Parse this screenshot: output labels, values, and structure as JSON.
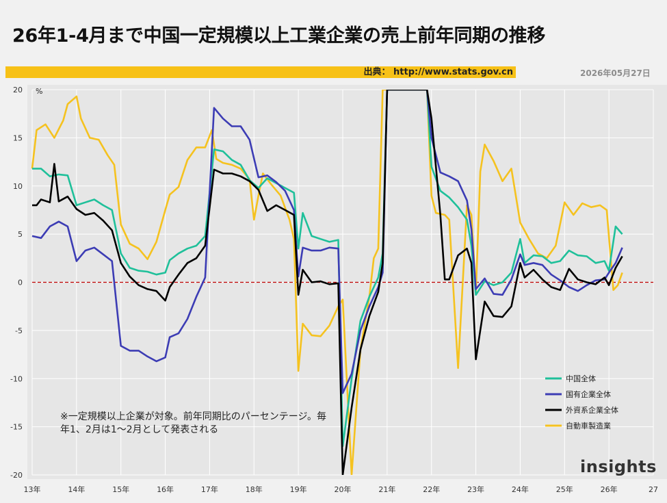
{
  "header": {
    "title": "26年1-4月まで中国一定規模以上工業企業の売上前年同期の推移",
    "source": "出典： http://www.stats.gov.cn",
    "date": "2026年05月27日"
  },
  "note": "※一定規模以上企業が対象。前年同期比のパーセンテージ。毎年1、2月は1～2月として発表される",
  "logo": "insights",
  "colors": {
    "china_total": "#1fc09a",
    "state_owned": "#3c3cb4",
    "foreign": "#000000",
    "auto": "#f5c21f",
    "zero_line": "#c00000",
    "grid": "#ffffff"
  },
  "chart_data": {
    "type": "line",
    "ylabel": "%",
    "ylim": [
      -20,
      20
    ],
    "xlim": [
      13,
      27
    ],
    "y_ticks": [
      20,
      15,
      10,
      5,
      0,
      -5,
      -10,
      -15,
      -20
    ],
    "x_ticks": [
      {
        "value": 13,
        "label": "13年"
      },
      {
        "value": 14,
        "label": "14年"
      },
      {
        "value": 15,
        "label": "15年"
      },
      {
        "value": 16,
        "label": "16年"
      },
      {
        "value": 17,
        "label": "17年"
      },
      {
        "value": 18,
        "label": "18年"
      },
      {
        "value": 19,
        "label": "19年"
      },
      {
        "value": 20,
        "label": "20年"
      },
      {
        "value": 21,
        "label": "21年"
      },
      {
        "value": 22,
        "label": "22年"
      },
      {
        "value": 23,
        "label": "23年"
      },
      {
        "value": 24,
        "label": "24年"
      },
      {
        "value": 25,
        "label": "25年"
      },
      {
        "value": 26,
        "label": "26年"
      },
      {
        "value": 27,
        "label": "27"
      }
    ],
    "legend_position": "bottom-right",
    "series": [
      {
        "key": "china_total",
        "name": "中国全体",
        "points": [
          [
            13.0,
            11.8
          ],
          [
            13.2,
            11.8
          ],
          [
            13.4,
            11.0
          ],
          [
            13.6,
            11.2
          ],
          [
            13.8,
            11.1
          ],
          [
            14.0,
            8.0
          ],
          [
            14.2,
            8.3
          ],
          [
            14.4,
            8.6
          ],
          [
            14.6,
            8.0
          ],
          [
            14.8,
            7.5
          ],
          [
            15.0,
            3.0
          ],
          [
            15.2,
            1.5
          ],
          [
            15.4,
            1.2
          ],
          [
            15.6,
            1.1
          ],
          [
            15.8,
            0.8
          ],
          [
            16.0,
            1.0
          ],
          [
            16.1,
            2.3
          ],
          [
            16.3,
            3.0
          ],
          [
            16.5,
            3.5
          ],
          [
            16.7,
            3.8
          ],
          [
            16.9,
            4.8
          ],
          [
            17.1,
            13.8
          ],
          [
            17.3,
            13.6
          ],
          [
            17.5,
            12.7
          ],
          [
            17.7,
            12.2
          ],
          [
            17.9,
            10.6
          ],
          [
            18.1,
            9.8
          ],
          [
            18.3,
            10.8
          ],
          [
            18.5,
            10.3
          ],
          [
            18.7,
            9.8
          ],
          [
            18.9,
            9.3
          ],
          [
            19.0,
            3.5
          ],
          [
            19.1,
            7.2
          ],
          [
            19.3,
            4.8
          ],
          [
            19.5,
            4.5
          ],
          [
            19.7,
            4.2
          ],
          [
            19.9,
            4.4
          ],
          [
            20.0,
            -17.0
          ],
          [
            20.2,
            -10.0
          ],
          [
            20.4,
            -4.0
          ],
          [
            20.6,
            -1.5
          ],
          [
            20.8,
            0.5
          ],
          [
            20.9,
            3.0
          ],
          [
            21.0,
            20.0
          ],
          [
            21.9,
            20.0
          ],
          [
            22.0,
            12.0
          ],
          [
            22.2,
            9.5
          ],
          [
            22.4,
            8.8
          ],
          [
            22.6,
            7.8
          ],
          [
            22.8,
            6.5
          ],
          [
            22.9,
            3.8
          ],
          [
            23.0,
            -1.3
          ],
          [
            23.2,
            0.1
          ],
          [
            23.4,
            -0.3
          ],
          [
            23.6,
            0.0
          ],
          [
            23.8,
            1.0
          ],
          [
            24.0,
            4.5
          ],
          [
            24.1,
            2.0
          ],
          [
            24.3,
            2.8
          ],
          [
            24.5,
            2.7
          ],
          [
            24.7,
            2.0
          ],
          [
            24.9,
            2.2
          ],
          [
            25.1,
            3.3
          ],
          [
            25.3,
            2.8
          ],
          [
            25.5,
            2.7
          ],
          [
            25.7,
            2.0
          ],
          [
            25.9,
            2.2
          ],
          [
            26.0,
            1.2
          ],
          [
            26.15,
            5.8
          ],
          [
            26.3,
            5.0
          ]
        ]
      },
      {
        "key": "state_owned",
        "name": "国有企業全体",
        "points": [
          [
            13.0,
            4.8
          ],
          [
            13.2,
            4.6
          ],
          [
            13.4,
            5.8
          ],
          [
            13.6,
            6.3
          ],
          [
            13.8,
            5.8
          ],
          [
            14.0,
            2.2
          ],
          [
            14.2,
            3.3
          ],
          [
            14.4,
            3.6
          ],
          [
            14.6,
            2.9
          ],
          [
            14.8,
            2.2
          ],
          [
            15.0,
            -6.6
          ],
          [
            15.2,
            -7.1
          ],
          [
            15.4,
            -7.1
          ],
          [
            15.6,
            -7.7
          ],
          [
            15.8,
            -8.2
          ],
          [
            16.0,
            -7.8
          ],
          [
            16.1,
            -5.7
          ],
          [
            16.3,
            -5.3
          ],
          [
            16.5,
            -3.8
          ],
          [
            16.7,
            -1.5
          ],
          [
            16.9,
            0.5
          ],
          [
            17.1,
            18.1
          ],
          [
            17.3,
            17.0
          ],
          [
            17.5,
            16.2
          ],
          [
            17.7,
            16.2
          ],
          [
            17.9,
            14.8
          ],
          [
            18.1,
            10.9
          ],
          [
            18.3,
            11.1
          ],
          [
            18.5,
            10.4
          ],
          [
            18.7,
            9.5
          ],
          [
            18.9,
            7.5
          ],
          [
            19.0,
            0.6
          ],
          [
            19.1,
            3.6
          ],
          [
            19.3,
            3.3
          ],
          [
            19.5,
            3.3
          ],
          [
            19.7,
            3.6
          ],
          [
            19.9,
            3.5
          ],
          [
            20.0,
            -11.5
          ],
          [
            20.2,
            -9.5
          ],
          [
            20.4,
            -5.0
          ],
          [
            20.6,
            -2.5
          ],
          [
            20.8,
            -0.5
          ],
          [
            20.9,
            1.0
          ],
          [
            21.0,
            20.0
          ],
          [
            21.9,
            20.0
          ],
          [
            22.0,
            15.0
          ],
          [
            22.2,
            11.4
          ],
          [
            22.4,
            11.0
          ],
          [
            22.6,
            10.5
          ],
          [
            22.8,
            8.5
          ],
          [
            22.9,
            5.5
          ],
          [
            23.0,
            -0.7
          ],
          [
            23.2,
            0.4
          ],
          [
            23.4,
            -1.2
          ],
          [
            23.6,
            -1.3
          ],
          [
            23.8,
            0.3
          ],
          [
            24.0,
            2.9
          ],
          [
            24.1,
            1.8
          ],
          [
            24.3,
            2.0
          ],
          [
            24.5,
            1.8
          ],
          [
            24.7,
            0.8
          ],
          [
            24.9,
            0.2
          ],
          [
            25.1,
            -0.5
          ],
          [
            25.3,
            -0.9
          ],
          [
            25.5,
            -0.3
          ],
          [
            25.7,
            0.2
          ],
          [
            25.9,
            0.3
          ],
          [
            26.0,
            1.0
          ],
          [
            26.15,
            2.0
          ],
          [
            26.3,
            3.6
          ]
        ]
      },
      {
        "key": "foreign",
        "name": "外資系企業全体",
        "points": [
          [
            13.0,
            8.0
          ],
          [
            13.1,
            8.0
          ],
          [
            13.2,
            8.6
          ],
          [
            13.4,
            8.3
          ],
          [
            13.5,
            12.3
          ],
          [
            13.6,
            8.4
          ],
          [
            13.8,
            8.9
          ],
          [
            14.0,
            7.6
          ],
          [
            14.2,
            7.0
          ],
          [
            14.4,
            7.2
          ],
          [
            14.6,
            6.4
          ],
          [
            14.8,
            5.4
          ],
          [
            15.0,
            2.0
          ],
          [
            15.2,
            0.6
          ],
          [
            15.4,
            -0.3
          ],
          [
            15.6,
            -0.7
          ],
          [
            15.8,
            -0.9
          ],
          [
            16.0,
            -1.9
          ],
          [
            16.1,
            -0.5
          ],
          [
            16.3,
            0.8
          ],
          [
            16.5,
            2.0
          ],
          [
            16.7,
            2.5
          ],
          [
            16.9,
            3.8
          ],
          [
            17.1,
            11.7
          ],
          [
            17.3,
            11.3
          ],
          [
            17.5,
            11.3
          ],
          [
            17.7,
            11.0
          ],
          [
            17.9,
            10.5
          ],
          [
            18.1,
            9.6
          ],
          [
            18.3,
            7.4
          ],
          [
            18.5,
            8.0
          ],
          [
            18.7,
            7.5
          ],
          [
            18.9,
            7.0
          ],
          [
            19.0,
            -1.3
          ],
          [
            19.1,
            1.3
          ],
          [
            19.3,
            0.0
          ],
          [
            19.5,
            0.1
          ],
          [
            19.7,
            -0.2
          ],
          [
            19.9,
            -0.1
          ],
          [
            20.0,
            -20.0
          ],
          [
            20.2,
            -13.0
          ],
          [
            20.4,
            -7.0
          ],
          [
            20.6,
            -3.5
          ],
          [
            20.8,
            -1.0
          ],
          [
            20.9,
            2.0
          ],
          [
            21.0,
            20.0
          ],
          [
            21.9,
            20.0
          ],
          [
            22.0,
            17.0
          ],
          [
            22.2,
            7.0
          ],
          [
            22.3,
            0.3
          ],
          [
            22.4,
            0.3
          ],
          [
            22.6,
            2.8
          ],
          [
            22.8,
            3.5
          ],
          [
            22.9,
            2.0
          ],
          [
            23.0,
            -8.0
          ],
          [
            23.2,
            -2.0
          ],
          [
            23.4,
            -3.5
          ],
          [
            23.6,
            -3.6
          ],
          [
            23.8,
            -2.5
          ],
          [
            24.0,
            2.0
          ],
          [
            24.1,
            0.5
          ],
          [
            24.3,
            1.3
          ],
          [
            24.5,
            0.3
          ],
          [
            24.7,
            -0.5
          ],
          [
            24.9,
            -0.8
          ],
          [
            25.1,
            1.4
          ],
          [
            25.3,
            0.3
          ],
          [
            25.5,
            0.0
          ],
          [
            25.7,
            -0.2
          ],
          [
            25.9,
            0.5
          ],
          [
            26.0,
            -0.3
          ],
          [
            26.15,
            1.5
          ],
          [
            26.3,
            2.7
          ]
        ]
      },
      {
        "key": "auto",
        "name": "自動車製造業",
        "points": [
          [
            13.0,
            11.8
          ],
          [
            13.1,
            15.8
          ],
          [
            13.3,
            16.4
          ],
          [
            13.5,
            15.0
          ],
          [
            13.7,
            16.8
          ],
          [
            13.8,
            18.5
          ],
          [
            14.0,
            19.3
          ],
          [
            14.1,
            17.0
          ],
          [
            14.3,
            15.0
          ],
          [
            14.5,
            14.8
          ],
          [
            14.7,
            13.2
          ],
          [
            14.85,
            12.2
          ],
          [
            15.0,
            6.0
          ],
          [
            15.2,
            4.0
          ],
          [
            15.4,
            3.5
          ],
          [
            15.6,
            2.4
          ],
          [
            15.8,
            4.2
          ],
          [
            16.0,
            7.5
          ],
          [
            16.1,
            9.1
          ],
          [
            16.3,
            9.9
          ],
          [
            16.5,
            12.7
          ],
          [
            16.7,
            14.0
          ],
          [
            16.9,
            14.0
          ],
          [
            17.05,
            15.8
          ],
          [
            17.15,
            12.8
          ],
          [
            17.3,
            12.4
          ],
          [
            17.5,
            12.2
          ],
          [
            17.7,
            11.8
          ],
          [
            17.9,
            10.7
          ],
          [
            18.0,
            6.5
          ],
          [
            18.1,
            9.0
          ],
          [
            18.2,
            11.3
          ],
          [
            18.4,
            10.1
          ],
          [
            18.6,
            9.0
          ],
          [
            18.8,
            6.5
          ],
          [
            18.9,
            4.5
          ],
          [
            19.0,
            -9.2
          ],
          [
            19.1,
            -4.3
          ],
          [
            19.3,
            -5.5
          ],
          [
            19.5,
            -5.6
          ],
          [
            19.7,
            -4.5
          ],
          [
            19.9,
            -2.5
          ],
          [
            20.0,
            -1.8
          ],
          [
            20.2,
            -20.0
          ],
          [
            20.4,
            -7.0
          ],
          [
            20.6,
            -1.5
          ],
          [
            20.7,
            2.5
          ],
          [
            20.8,
            3.5
          ],
          [
            20.9,
            20.0
          ],
          [
            21.9,
            20.0
          ],
          [
            22.0,
            9.0
          ],
          [
            22.1,
            7.2
          ],
          [
            22.3,
            7.0
          ],
          [
            22.4,
            6.5
          ],
          [
            22.6,
            -8.9
          ],
          [
            22.8,
            8.0
          ],
          [
            22.9,
            7.0
          ],
          [
            23.0,
            -1.0
          ],
          [
            23.1,
            11.5
          ],
          [
            23.2,
            14.3
          ],
          [
            23.4,
            12.6
          ],
          [
            23.6,
            10.5
          ],
          [
            23.8,
            11.8
          ],
          [
            24.0,
            6.2
          ],
          [
            24.2,
            4.5
          ],
          [
            24.4,
            3.0
          ],
          [
            24.6,
            2.5
          ],
          [
            24.8,
            3.8
          ],
          [
            25.0,
            8.3
          ],
          [
            25.2,
            7.0
          ],
          [
            25.4,
            8.2
          ],
          [
            25.6,
            7.8
          ],
          [
            25.8,
            8.0
          ],
          [
            25.95,
            7.5
          ],
          [
            26.1,
            -0.8
          ],
          [
            26.2,
            -0.3
          ],
          [
            26.3,
            1.0
          ]
        ]
      }
    ]
  }
}
